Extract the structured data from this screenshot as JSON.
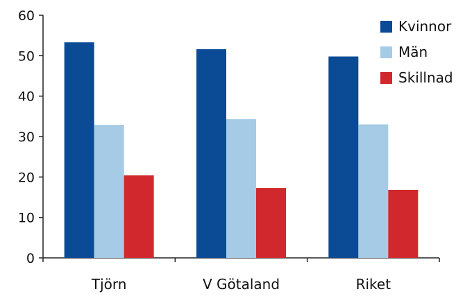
{
  "chart_data": {
    "type": "bar",
    "categories": [
      "Tjörn",
      "V Götaland",
      "Riket"
    ],
    "series": [
      {
        "name": "Kvinnor",
        "color": "#0b4a94",
        "values": [
          53.3,
          51.6,
          49.8
        ]
      },
      {
        "name": "Män",
        "color": "#a6cbe6",
        "values": [
          32.9,
          34.3,
          33.0
        ]
      },
      {
        "name": "Skillnad",
        "color": "#d1282e",
        "values": [
          20.4,
          17.3,
          16.8
        ]
      }
    ],
    "y_ticks": [
      0,
      10,
      20,
      30,
      40,
      50,
      60
    ],
    "ylim": [
      0,
      60
    ],
    "grid": false,
    "legend_position": "top-right"
  }
}
